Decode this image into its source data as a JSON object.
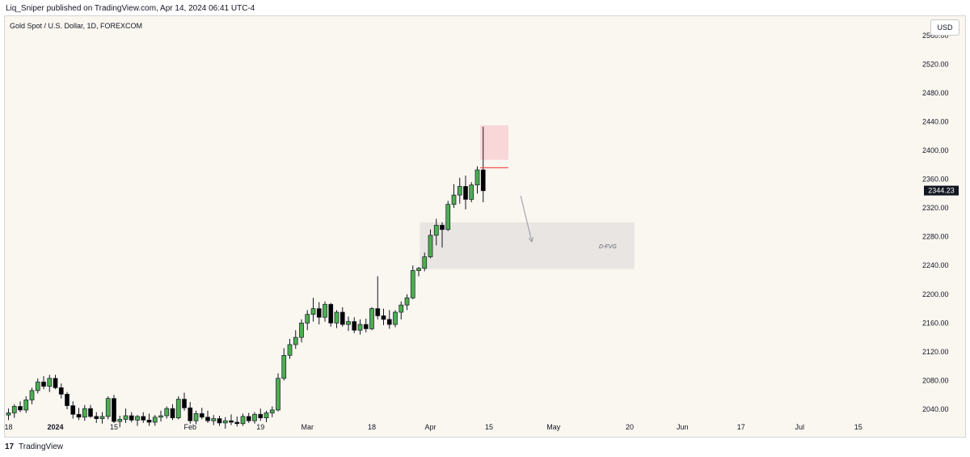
{
  "header": {
    "attribution": "Liq_Sniper published on TradingView.com, Apr 14, 2024 06:41 UTC-4"
  },
  "symbol_title": "Gold Spot / U.S. Dollar, 1D, FOREXCOM",
  "currency_label": "USD",
  "footer": {
    "logo_glyph": "17",
    "brand": "TradingView"
  },
  "colors": {
    "background": "#faf6f0",
    "up": "#4caf50",
    "down": "#000000",
    "wick": "#131722",
    "supply_zone": "#f9d6d8",
    "fvg_zone": "#e9e5e2",
    "price_badge": "#131722",
    "level_line": "#ef5350"
  },
  "chart_data": {
    "type": "candlestick",
    "title": "Gold Spot / U.S. Dollar, 1D, FOREXCOM",
    "ylim": [
      2000,
      2580
    ],
    "y_ticks": [
      2040,
      2080,
      2120,
      2160,
      2200,
      2240,
      2280,
      2320,
      2360,
      2400,
      2440,
      2480,
      2520,
      2560
    ],
    "x_ticks": [
      {
        "label": "18",
        "bar": 0
      },
      {
        "label": "2024",
        "bar": 8
      },
      {
        "label": "15",
        "bar": 18
      },
      {
        "label": "Feb",
        "bar": 31
      },
      {
        "label": "19",
        "bar": 43
      },
      {
        "label": "Mar",
        "bar": 51
      },
      {
        "label": "18",
        "bar": 62
      },
      {
        "label": "Apr",
        "bar": 72
      },
      {
        "label": "15",
        "bar": 82
      },
      {
        "label": "May",
        "bar": 93
      },
      {
        "label": "20",
        "bar": 106
      },
      {
        "label": "Jun",
        "bar": 115
      },
      {
        "label": "17",
        "bar": 125
      },
      {
        "label": "Jul",
        "bar": 135
      },
      {
        "label": "15",
        "bar": 145
      }
    ],
    "last_price": 2344.23,
    "candles": [
      {
        "o": 2032,
        "h": 2041,
        "l": 2025,
        "c": 2035
      },
      {
        "o": 2035,
        "h": 2047,
        "l": 2028,
        "c": 2044
      },
      {
        "o": 2044,
        "h": 2051,
        "l": 2036,
        "c": 2039
      },
      {
        "o": 2039,
        "h": 2058,
        "l": 2035,
        "c": 2053
      },
      {
        "o": 2053,
        "h": 2070,
        "l": 2047,
        "c": 2066
      },
      {
        "o": 2066,
        "h": 2083,
        "l": 2062,
        "c": 2078
      },
      {
        "o": 2078,
        "h": 2086,
        "l": 2068,
        "c": 2072
      },
      {
        "o": 2072,
        "h": 2088,
        "l": 2064,
        "c": 2083
      },
      {
        "o": 2083,
        "h": 2088,
        "l": 2068,
        "c": 2070
      },
      {
        "o": 2070,
        "h": 2076,
        "l": 2055,
        "c": 2061
      },
      {
        "o": 2061,
        "h": 2064,
        "l": 2040,
        "c": 2045
      },
      {
        "o": 2045,
        "h": 2051,
        "l": 2027,
        "c": 2033
      },
      {
        "o": 2033,
        "h": 2042,
        "l": 2025,
        "c": 2029
      },
      {
        "o": 2029,
        "h": 2046,
        "l": 2024,
        "c": 2041
      },
      {
        "o": 2041,
        "h": 2046,
        "l": 2028,
        "c": 2030
      },
      {
        "o": 2030,
        "h": 2036,
        "l": 2021,
        "c": 2027
      },
      {
        "o": 2027,
        "h": 2036,
        "l": 2020,
        "c": 2030
      },
      {
        "o": 2030,
        "h": 2058,
        "l": 2026,
        "c": 2055
      },
      {
        "o": 2055,
        "h": 2060,
        "l": 2021,
        "c": 2023
      },
      {
        "o": 2023,
        "h": 2031,
        "l": 2015,
        "c": 2026
      },
      {
        "o": 2026,
        "h": 2041,
        "l": 2021,
        "c": 2031
      },
      {
        "o": 2031,
        "h": 2036,
        "l": 2022,
        "c": 2025
      },
      {
        "o": 2025,
        "h": 2032,
        "l": 2017,
        "c": 2030
      },
      {
        "o": 2030,
        "h": 2036,
        "l": 2021,
        "c": 2025
      },
      {
        "o": 2025,
        "h": 2034,
        "l": 2017,
        "c": 2022
      },
      {
        "o": 2022,
        "h": 2032,
        "l": 2017,
        "c": 2029
      },
      {
        "o": 2029,
        "h": 2038,
        "l": 2023,
        "c": 2031
      },
      {
        "o": 2031,
        "h": 2044,
        "l": 2027,
        "c": 2041
      },
      {
        "o": 2041,
        "h": 2047,
        "l": 2025,
        "c": 2028
      },
      {
        "o": 2028,
        "h": 2058,
        "l": 2026,
        "c": 2054
      },
      {
        "o": 2054,
        "h": 2063,
        "l": 2038,
        "c": 2042
      },
      {
        "o": 2042,
        "h": 2050,
        "l": 2020,
        "c": 2024
      },
      {
        "o": 2024,
        "h": 2038,
        "l": 2019,
        "c": 2034
      },
      {
        "o": 2034,
        "h": 2042,
        "l": 2026,
        "c": 2029
      },
      {
        "o": 2029,
        "h": 2038,
        "l": 2021,
        "c": 2024
      },
      {
        "o": 2024,
        "h": 2032,
        "l": 2018,
        "c": 2027
      },
      {
        "o": 2027,
        "h": 2031,
        "l": 2017,
        "c": 2021
      },
      {
        "o": 2021,
        "h": 2029,
        "l": 2013,
        "c": 2024
      },
      {
        "o": 2024,
        "h": 2033,
        "l": 2018,
        "c": 2022
      },
      {
        "o": 2022,
        "h": 2030,
        "l": 2016,
        "c": 2020
      },
      {
        "o": 2020,
        "h": 2034,
        "l": 2017,
        "c": 2030
      },
      {
        "o": 2030,
        "h": 2035,
        "l": 2021,
        "c": 2024
      },
      {
        "o": 2024,
        "h": 2036,
        "l": 2020,
        "c": 2033
      },
      {
        "o": 2033,
        "h": 2041,
        "l": 2024,
        "c": 2028
      },
      {
        "o": 2028,
        "h": 2038,
        "l": 2022,
        "c": 2035
      },
      {
        "o": 2035,
        "h": 2044,
        "l": 2029,
        "c": 2039
      },
      {
        "o": 2039,
        "h": 2090,
        "l": 2037,
        "c": 2083
      },
      {
        "o": 2083,
        "h": 2125,
        "l": 2080,
        "c": 2115
      },
      {
        "o": 2115,
        "h": 2138,
        "l": 2110,
        "c": 2130
      },
      {
        "o": 2130,
        "h": 2150,
        "l": 2124,
        "c": 2140
      },
      {
        "o": 2140,
        "h": 2165,
        "l": 2133,
        "c": 2160
      },
      {
        "o": 2160,
        "h": 2178,
        "l": 2150,
        "c": 2172
      },
      {
        "o": 2172,
        "h": 2195,
        "l": 2162,
        "c": 2180
      },
      {
        "o": 2180,
        "h": 2189,
        "l": 2158,
        "c": 2168
      },
      {
        "o": 2168,
        "h": 2190,
        "l": 2162,
        "c": 2186
      },
      {
        "o": 2186,
        "h": 2188,
        "l": 2155,
        "c": 2160
      },
      {
        "o": 2160,
        "h": 2178,
        "l": 2153,
        "c": 2175
      },
      {
        "o": 2175,
        "h": 2182,
        "l": 2155,
        "c": 2158
      },
      {
        "o": 2158,
        "h": 2169,
        "l": 2149,
        "c": 2162
      },
      {
        "o": 2162,
        "h": 2168,
        "l": 2146,
        "c": 2150
      },
      {
        "o": 2150,
        "h": 2165,
        "l": 2144,
        "c": 2158
      },
      {
        "o": 2158,
        "h": 2166,
        "l": 2147,
        "c": 2152
      },
      {
        "o": 2152,
        "h": 2182,
        "l": 2150,
        "c": 2180
      },
      {
        "o": 2180,
        "h": 2225,
        "l": 2165,
        "c": 2170
      },
      {
        "o": 2170,
        "h": 2180,
        "l": 2157,
        "c": 2165
      },
      {
        "o": 2165,
        "h": 2178,
        "l": 2152,
        "c": 2158
      },
      {
        "o": 2158,
        "h": 2178,
        "l": 2154,
        "c": 2175
      },
      {
        "o": 2175,
        "h": 2190,
        "l": 2165,
        "c": 2185
      },
      {
        "o": 2185,
        "h": 2200,
        "l": 2178,
        "c": 2195
      },
      {
        "o": 2195,
        "h": 2240,
        "l": 2193,
        "c": 2233
      },
      {
        "o": 2233,
        "h": 2238,
        "l": 2225,
        "c": 2236
      },
      {
        "o": 2236,
        "h": 2258,
        "l": 2232,
        "c": 2252
      },
      {
        "o": 2252,
        "h": 2290,
        "l": 2250,
        "c": 2282
      },
      {
        "o": 2282,
        "h": 2305,
        "l": 2268,
        "c": 2296
      },
      {
        "o": 2296,
        "h": 2300,
        "l": 2265,
        "c": 2290
      },
      {
        "o": 2290,
        "h": 2330,
        "l": 2288,
        "c": 2325
      },
      {
        "o": 2325,
        "h": 2353,
        "l": 2320,
        "c": 2338
      },
      {
        "o": 2338,
        "h": 2362,
        "l": 2326,
        "c": 2350
      },
      {
        "o": 2350,
        "h": 2365,
        "l": 2318,
        "c": 2332
      },
      {
        "o": 2332,
        "h": 2356,
        "l": 2328,
        "c": 2352
      },
      {
        "o": 2352,
        "h": 2378,
        "l": 2340,
        "c": 2373
      },
      {
        "o": 2373,
        "h": 2433,
        "l": 2328,
        "c": 2344
      }
    ],
    "annotations": [
      {
        "kind": "supply-zone",
        "x0_bar": 80.5,
        "x1_bar": 85.3,
        "y0": 2387,
        "y1": 2435
      },
      {
        "kind": "level-line",
        "x0_bar": 80.5,
        "x1_bar": 85.3,
        "y": 2376
      },
      {
        "kind": "fvg-zone",
        "label": "D-FVG",
        "x0_bar": 70.2,
        "x1_bar": 106.8,
        "y0": 2235,
        "y1": 2300
      },
      {
        "kind": "arrow",
        "from_bar": 87.4,
        "from_y": 2337,
        "to_bar": 89.3,
        "to_y": 2273
      }
    ]
  }
}
